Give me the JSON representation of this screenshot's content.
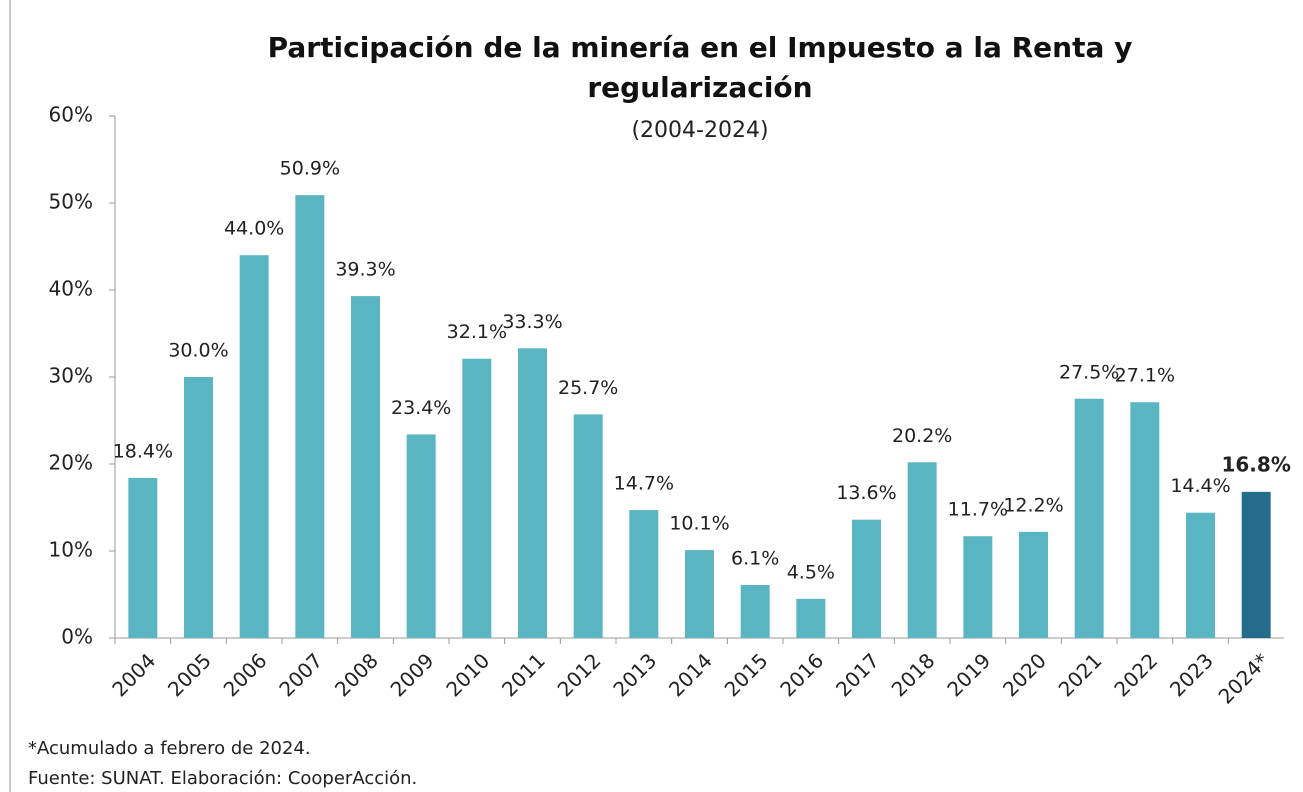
{
  "chart_data": {
    "type": "bar",
    "title": "Participación de la minería en el Impuesto a la Renta y regularización",
    "subtitle": "(2004-2024)",
    "categories": [
      "2004",
      "2005",
      "2006",
      "2007",
      "2008",
      "2009",
      "2010",
      "2011",
      "2012",
      "2013",
      "2014",
      "2015",
      "2016",
      "2017",
      "2018",
      "2019",
      "2020",
      "2021",
      "2022",
      "2023",
      "2024*"
    ],
    "values": [
      18.4,
      30.0,
      44.0,
      50.9,
      39.3,
      23.4,
      32.1,
      33.3,
      25.7,
      14.7,
      10.1,
      6.1,
      4.5,
      13.6,
      20.2,
      11.7,
      12.2,
      27.5,
      27.1,
      14.4,
      16.8
    ],
    "value_labels": [
      "18.4%",
      "30.0%",
      "44.0%",
      "50.9%",
      "39.3%",
      "23.4%",
      "32.1%",
      "33.3%",
      "25.7%",
      "14.7%",
      "10.1%",
      "6.1%",
      "4.5%",
      "13.6%",
      "20.2%",
      "11.7%",
      "12.2%",
      "27.5%",
      "27.1%",
      "14.4%",
      "16.8%"
    ],
    "colors": [
      "#5ab5c2",
      "#5ab5c2",
      "#5ab5c2",
      "#5ab5c2",
      "#5ab5c2",
      "#5ab5c2",
      "#5ab5c2",
      "#5ab5c2",
      "#5ab5c2",
      "#5ab5c2",
      "#5ab5c2",
      "#5ab5c2",
      "#5ab5c2",
      "#5ab5c2",
      "#5ab5c2",
      "#5ab5c2",
      "#5ab5c2",
      "#5ab5c2",
      "#5ab5c2",
      "#5ab5c2",
      "#236d8a"
    ],
    "ylim": [
      0,
      60
    ],
    "yticks": [
      {
        "value": 0,
        "label": "0%"
      },
      {
        "value": 10,
        "label": "10%"
      },
      {
        "value": 20,
        "label": "20%"
      },
      {
        "value": 30,
        "label": "30%"
      },
      {
        "value": 40,
        "label": "40%"
      },
      {
        "value": 50,
        "label": "50%"
      },
      {
        "value": 60,
        "label": "60%"
      }
    ],
    "grid": false,
    "notes": [
      "*Acumulado a febrero de 2024.",
      "Fuente: SUNAT. Elaboración: CooperAcción."
    ]
  }
}
